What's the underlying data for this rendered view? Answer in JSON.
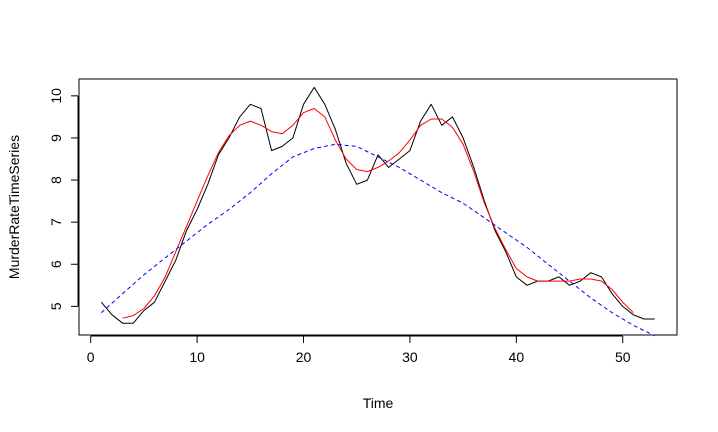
{
  "chart_data": {
    "type": "line",
    "title": "",
    "xlabel": "Time",
    "ylabel": "MurderRateTimeSeries",
    "xlim": [
      -1.1,
      55.1
    ],
    "ylim": [
      4.32,
      10.4
    ],
    "x_ticks": [
      0,
      10,
      20,
      30,
      40,
      50
    ],
    "y_ticks": [
      5,
      6,
      7,
      8,
      9,
      10
    ],
    "grid": false,
    "series": [
      {
        "color": "#000000",
        "dash": "solid",
        "x": [
          1,
          2,
          3,
          4,
          5,
          6,
          7,
          8,
          9,
          10,
          11,
          12,
          13,
          14,
          15,
          16,
          17,
          18,
          19,
          20,
          21,
          22,
          23,
          24,
          25,
          26,
          27,
          28,
          29,
          30,
          31,
          32,
          33,
          34,
          35,
          36,
          37,
          38,
          39,
          40,
          41,
          42,
          43,
          44,
          45,
          46,
          47,
          48,
          49,
          50,
          51,
          52,
          53
        ],
        "y": [
          5.1,
          4.8,
          4.6,
          4.6,
          4.9,
          5.1,
          5.6,
          6.1,
          6.8,
          7.3,
          7.9,
          8.6,
          9.0,
          9.5,
          9.8,
          9.7,
          8.7,
          8.8,
          9.0,
          9.8,
          10.2,
          9.8,
          9.2,
          8.4,
          7.9,
          8.0,
          8.6,
          8.3,
          8.5,
          8.7,
          9.4,
          9.8,
          9.3,
          9.5,
          9.0,
          8.3,
          7.5,
          6.8,
          6.3,
          5.7,
          5.5,
          5.6,
          5.6,
          5.7,
          5.5,
          5.6,
          5.8,
          5.7,
          5.3,
          5.0,
          4.8,
          4.7,
          4.7
        ]
      },
      {
        "color": "#ff0000",
        "dash": "solid",
        "x": [
          3,
          4,
          5,
          6,
          7,
          8,
          9,
          10,
          11,
          12,
          13,
          14,
          15,
          16,
          17,
          18,
          19,
          20,
          21,
          22,
          23,
          24,
          25,
          26,
          27,
          28,
          29,
          30,
          31,
          32,
          33,
          34,
          35,
          36,
          37,
          38,
          39,
          40,
          41,
          42,
          43,
          44,
          45,
          46,
          47,
          48,
          49,
          50,
          51
        ],
        "y": [
          4.72,
          4.78,
          4.95,
          5.25,
          5.7,
          6.3,
          6.9,
          7.5,
          8.1,
          8.65,
          9.05,
          9.3,
          9.4,
          9.3,
          9.15,
          9.1,
          9.3,
          9.6,
          9.7,
          9.5,
          8.95,
          8.5,
          8.25,
          8.2,
          8.3,
          8.45,
          8.65,
          8.95,
          9.3,
          9.45,
          9.45,
          9.25,
          8.85,
          8.2,
          7.45,
          6.85,
          6.35,
          5.9,
          5.7,
          5.6,
          5.6,
          5.6,
          5.6,
          5.65,
          5.65,
          5.6,
          5.4,
          5.1,
          4.85
        ]
      },
      {
        "color": "#0000ff",
        "dash": "dashed",
        "x": [
          1,
          3,
          5,
          7,
          9,
          11,
          13,
          15,
          17,
          19,
          21,
          23,
          25,
          27,
          29,
          31,
          33,
          35,
          37,
          39,
          41,
          43,
          45,
          47,
          49,
          51,
          53
        ],
        "y": [
          4.85,
          5.3,
          5.75,
          6.15,
          6.55,
          6.95,
          7.3,
          7.7,
          8.15,
          8.55,
          8.75,
          8.85,
          8.8,
          8.55,
          8.3,
          8.0,
          7.7,
          7.45,
          7.1,
          6.75,
          6.4,
          6.0,
          5.6,
          5.2,
          4.85,
          4.55,
          4.3
        ]
      }
    ]
  }
}
